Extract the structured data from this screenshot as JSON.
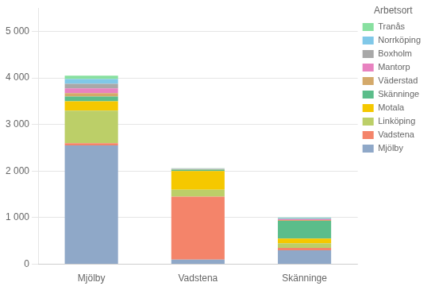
{
  "chart_data": {
    "type": "bar",
    "stacked": true,
    "categories": [
      "Mjölby",
      "Vadstena",
      "Skänninge"
    ],
    "legend_title": "Arbetsort",
    "legend": "upper right",
    "series": [
      {
        "name": "Mjölby",
        "color": "#8FA8C8",
        "values": [
          2550,
          100,
          300
        ]
      },
      {
        "name": "Vadstena",
        "color": "#F4846A",
        "values": [
          50,
          1350,
          50
        ]
      },
      {
        "name": "Linköping",
        "color": "#BCCF68",
        "values": [
          700,
          150,
          100
        ]
      },
      {
        "name": "Motala",
        "color": "#F5C800",
        "values": [
          200,
          400,
          100
        ]
      },
      {
        "name": "Skänninge",
        "color": "#5BBD8A",
        "values": [
          100,
          30,
          380
        ]
      },
      {
        "name": "Väderstad",
        "color": "#D4A96A",
        "values": [
          75,
          10,
          20
        ]
      },
      {
        "name": "Mantorp",
        "color": "#E882C0",
        "values": [
          100,
          5,
          15
        ]
      },
      {
        "name": "Boxholm",
        "color": "#A8A8A8",
        "values": [
          100,
          5,
          15
        ]
      },
      {
        "name": "Norrköping",
        "color": "#80C8E8",
        "values": [
          100,
          5,
          15
        ]
      },
      {
        "name": "Tranås",
        "color": "#88E0A0",
        "values": [
          75,
          5,
          10
        ]
      }
    ],
    "ylim": [
      0,
      5500
    ],
    "yticks": [
      0,
      {
        "value": 1000,
        "label": "1 000"
      },
      {
        "value": 2000,
        "label": "2 000"
      },
      {
        "value": 3000,
        "label": "3 000"
      },
      {
        "value": 4000,
        "label": "4 000"
      },
      {
        "value": 5000,
        "label": "5 000"
      }
    ],
    "grid": true
  }
}
